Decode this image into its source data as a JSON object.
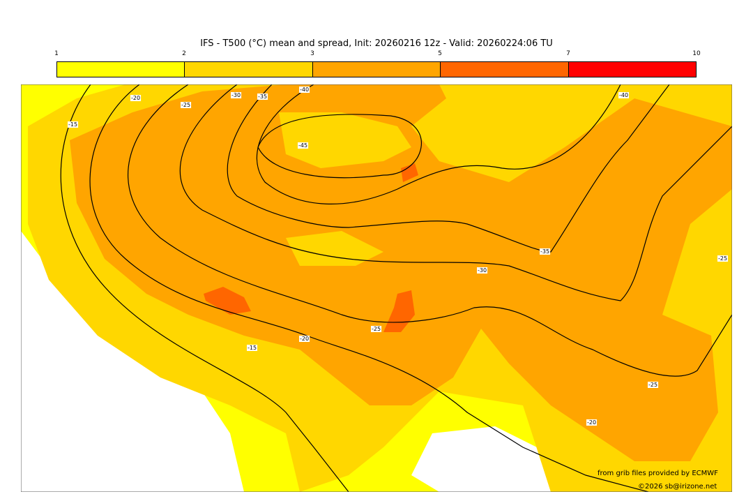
{
  "title": "IFS - T500 (°C) mean and spread, Init: 20260216 12z - Valid: 20260224:06 TU",
  "colorbar": {
    "ticks": [
      "1",
      "2",
      "3",
      "5",
      "7",
      "10"
    ],
    "colors": [
      "#ffff00",
      "#ffd700",
      "#ffa500",
      "#ff6600",
      "#ff0000"
    ]
  },
  "contour_labels": [
    "-15",
    "-20",
    "-25",
    "-30",
    "-35",
    "-40",
    "-45",
    "-40",
    "-35",
    "-30",
    "-25",
    "-20",
    "-15",
    "-25",
    "-25",
    "-20"
  ],
  "credits": {
    "source": "from grib files provided by ECMWF",
    "copyright": "©2026 sb@irizone.net"
  }
}
